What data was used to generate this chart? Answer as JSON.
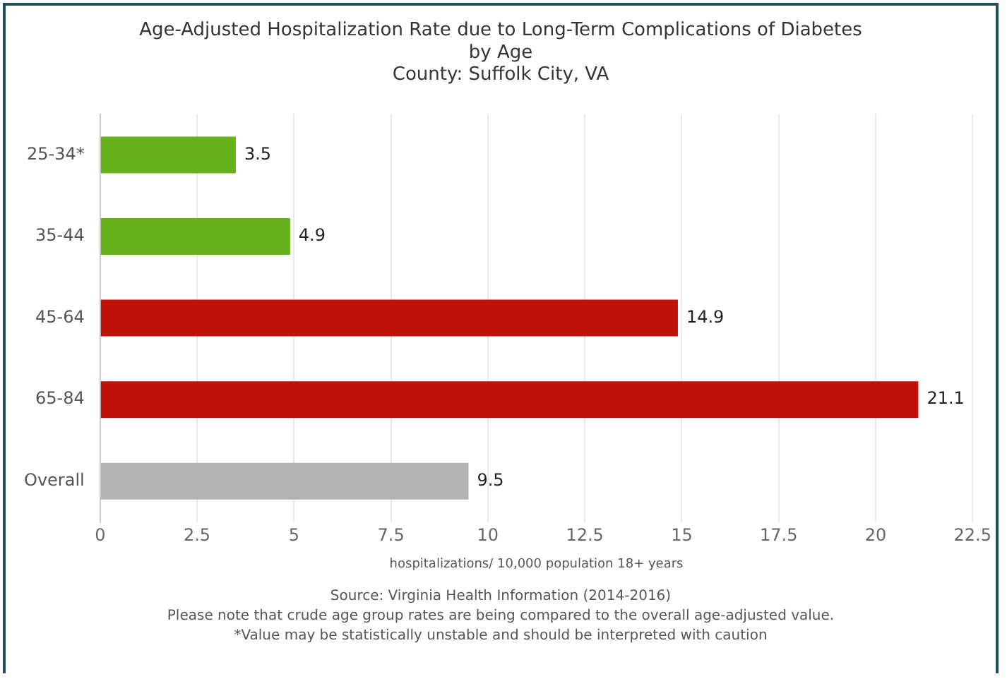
{
  "chart_data": {
    "type": "bar",
    "orientation": "horizontal",
    "title": "Age-Adjusted Hospitalization Rate due to Long-Term Complications of Diabetes\nby Age",
    "subtitle": "County: Suffolk City, VA",
    "xlabel": "hospitalizations/ 10,000 population 18+ years",
    "categories": [
      "25-34*",
      "35-44",
      "45-64",
      "65-84",
      "Overall"
    ],
    "values": [
      3.5,
      4.9,
      14.9,
      21.1,
      9.5
    ],
    "colors": [
      "#66b21d",
      "#66b21d",
      "#c0120b",
      "#c0120b",
      "#b3b3b3"
    ],
    "xlim": [
      0,
      22.5
    ],
    "xticks": [
      0,
      2.5,
      5,
      7.5,
      10,
      12.5,
      15,
      17.5,
      20,
      22.5
    ],
    "grid": "x",
    "legend": false,
    "data_labels": true,
    "annotations": [
      "Source: Virginia Health Information (2014-2016)",
      "Please note that crude age group rates are being compared to the overall age-adjusted value.",
      "*Value may be statistically unstable and should be interpreted with caution"
    ]
  }
}
